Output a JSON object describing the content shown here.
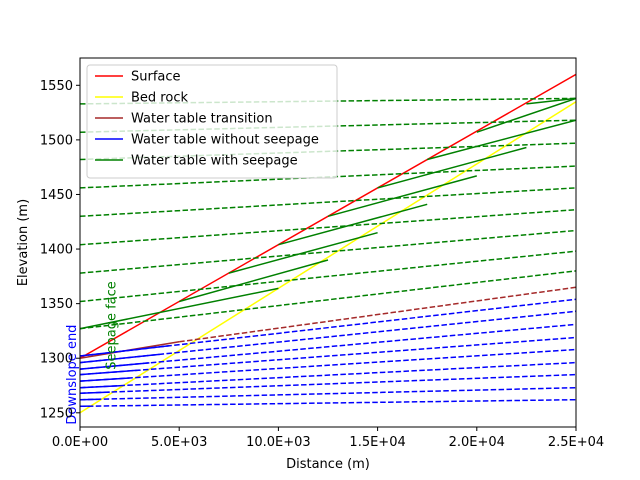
{
  "chart_data": {
    "type": "line",
    "title": "",
    "xlabel": "Distance (m)",
    "ylabel": "Elevation (m)",
    "xlim": [
      0,
      25000
    ],
    "ylim": [
      1237,
      1575
    ],
    "x_scale": "linear",
    "y_scale": "linear",
    "grid": false,
    "legend_position": "top-left",
    "x_ticks": [
      0,
      5000,
      10000,
      15000,
      20000,
      25000
    ],
    "x_tick_labels": [
      "0.0E+00",
      "5.0E+03",
      "10.0E+03",
      "1.5E+04",
      "2.0E+04",
      "2.5E+04"
    ],
    "y_ticks": [
      1250,
      1300,
      1350,
      1400,
      1450,
      1500,
      1550
    ],
    "y_tick_labels": [
      "1250",
      "1300",
      "1350",
      "1400",
      "1450",
      "1500",
      "1550"
    ],
    "legend": [
      {
        "name": "Surface",
        "color": "#ff0000"
      },
      {
        "name": "Bed rock",
        "color": "#ffff00"
      },
      {
        "name": "Water table transition",
        "color": "#a52a2a"
      },
      {
        "name": "Water table without seepage",
        "color": "#0000ff"
      },
      {
        "name": "Water table with seepage",
        "color": "#008000"
      }
    ],
    "annotations": [
      {
        "text": "Downslope end",
        "color": "#0000ff",
        "rotation": -90,
        "x": 0,
        "y": 1285
      },
      {
        "text": "Seepage face",
        "color": "#008000",
        "rotation": -90,
        "x": 1800,
        "y": 1330
      }
    ],
    "series": [
      {
        "name": "Surface",
        "color": "#ff0000",
        "style": "solid",
        "x": [
          0,
          25000
        ],
        "y": [
          1300,
          1560
        ]
      },
      {
        "name": "Bed rock",
        "color": "#ffff00",
        "style": "solid",
        "x": [
          0,
          25000
        ],
        "y": [
          1250,
          1535
        ]
      },
      {
        "color": "#a52a2a",
        "style": "dashed",
        "x": [
          5000,
          25000
        ],
        "y": [
          1315,
          1365
        ]
      },
      {
        "color": "#a52a2a",
        "style": "solid",
        "x": [
          0,
          5000
        ],
        "y": [
          1300,
          1315
        ]
      },
      {
        "color": "#0000ff",
        "style": "dashed",
        "x": [
          0,
          25000
        ],
        "y": [
          1256,
          1262
        ]
      },
      {
        "color": "#0000ff",
        "style": "dashed",
        "x": [
          0,
          25000
        ],
        "y": [
          1262,
          1273
        ]
      },
      {
        "color": "#0000ff",
        "style": "dashed",
        "x": [
          0,
          25000
        ],
        "y": [
          1268,
          1285
        ]
      },
      {
        "color": "#0000ff",
        "style": "dashed",
        "x": [
          0,
          25000
        ],
        "y": [
          1273,
          1296
        ]
      },
      {
        "color": "#0000ff",
        "style": "dashed",
        "x": [
          0,
          25000
        ],
        "y": [
          1279,
          1308
        ]
      },
      {
        "color": "#0000ff",
        "style": "dashed",
        "x": [
          0,
          25000
        ],
        "y": [
          1285,
          1319
        ]
      },
      {
        "color": "#0000ff",
        "style": "dashed",
        "x": [
          0,
          25000
        ],
        "y": [
          1290,
          1331
        ]
      },
      {
        "color": "#0000ff",
        "style": "dashed",
        "x": [
          0,
          25000
        ],
        "y": [
          1296,
          1343
        ]
      },
      {
        "color": "#0000ff",
        "style": "dashed",
        "x": [
          0,
          25000
        ],
        "y": [
          1302,
          1354
        ]
      },
      {
        "color": "#0000ff",
        "style": "solid",
        "x": [
          0,
          500
        ],
        "y": [
          1256,
          1256.1
        ]
      },
      {
        "color": "#0000ff",
        "style": "solid",
        "x": [
          0,
          1000
        ],
        "y": [
          1262,
          1262.4
        ]
      },
      {
        "color": "#0000ff",
        "style": "solid",
        "x": [
          0,
          1500
        ],
        "y": [
          1268,
          1269
        ]
      },
      {
        "color": "#0000ff",
        "style": "solid",
        "x": [
          0,
          2000
        ],
        "y": [
          1273,
          1274.8
        ]
      },
      {
        "color": "#0000ff",
        "style": "solid",
        "x": [
          0,
          2500
        ],
        "y": [
          1279,
          1281.9
        ]
      },
      {
        "color": "#0000ff",
        "style": "solid",
        "x": [
          0,
          3000
        ],
        "y": [
          1285,
          1289.1
        ]
      },
      {
        "color": "#0000ff",
        "style": "solid",
        "x": [
          0,
          3500
        ],
        "y": [
          1290,
          1295.7
        ]
      },
      {
        "color": "#0000ff",
        "style": "solid",
        "x": [
          0,
          4000
        ],
        "y": [
          1296,
          1303.5
        ]
      },
      {
        "color": "#0000ff",
        "style": "solid",
        "x": [
          0,
          4500
        ],
        "y": [
          1302,
          1311.4
        ]
      },
      {
        "color": "#008000",
        "style": "dashed",
        "x": [
          0,
          25000
        ],
        "y": [
          1327,
          1380
        ]
      },
      {
        "color": "#008000",
        "style": "dashed",
        "x": [
          0,
          25000
        ],
        "y": [
          1352,
          1398
        ]
      },
      {
        "color": "#008000",
        "style": "dashed",
        "x": [
          0,
          25000
        ],
        "y": [
          1378,
          1417
        ]
      },
      {
        "color": "#008000",
        "style": "dashed",
        "x": [
          0,
          25000
        ],
        "y": [
          1404,
          1436
        ]
      },
      {
        "color": "#008000",
        "style": "dashed",
        "x": [
          0,
          25000
        ],
        "y": [
          1430,
          1456
        ]
      },
      {
        "color": "#008000",
        "style": "dashed",
        "x": [
          0,
          25000
        ],
        "y": [
          1456,
          1476
        ]
      },
      {
        "color": "#008000",
        "style": "dashed",
        "x": [
          0,
          25000
        ],
        "y": [
          1482,
          1497
        ]
      },
      {
        "color": "#008000",
        "style": "dashed",
        "x": [
          0,
          25000
        ],
        "y": [
          1507,
          1518
        ]
      },
      {
        "color": "#008000",
        "style": "dashed",
        "x": [
          0,
          25000
        ],
        "y": [
          1533,
          1538
        ]
      },
      {
        "color": "#008000",
        "style": "solid",
        "x": [
          0,
          10000
        ],
        "y": [
          1327,
          1364
        ]
      },
      {
        "color": "#008000",
        "style": "solid",
        "x": [
          5000,
          12500
        ],
        "y": [
          1352,
          1390
        ]
      },
      {
        "color": "#008000",
        "style": "solid",
        "x": [
          7500,
          15000
        ],
        "y": [
          1378,
          1415
        ]
      },
      {
        "color": "#008000",
        "style": "solid",
        "x": [
          10000,
          17500
        ],
        "y": [
          1404,
          1441
        ]
      },
      {
        "color": "#008000",
        "style": "solid",
        "x": [
          12500,
          20000
        ],
        "y": [
          1430,
          1467
        ]
      },
      {
        "color": "#008000",
        "style": "solid",
        "x": [
          15000,
          22500
        ],
        "y": [
          1456,
          1493
        ]
      },
      {
        "color": "#008000",
        "style": "solid",
        "x": [
          17500,
          25000
        ],
        "y": [
          1482,
          1518
        ]
      },
      {
        "color": "#008000",
        "style": "solid",
        "x": [
          20000,
          25000
        ],
        "y": [
          1507,
          1538
        ]
      },
      {
        "color": "#008000",
        "style": "solid",
        "x": [
          22500,
          25000
        ],
        "y": [
          1533,
          1538
        ]
      }
    ]
  }
}
